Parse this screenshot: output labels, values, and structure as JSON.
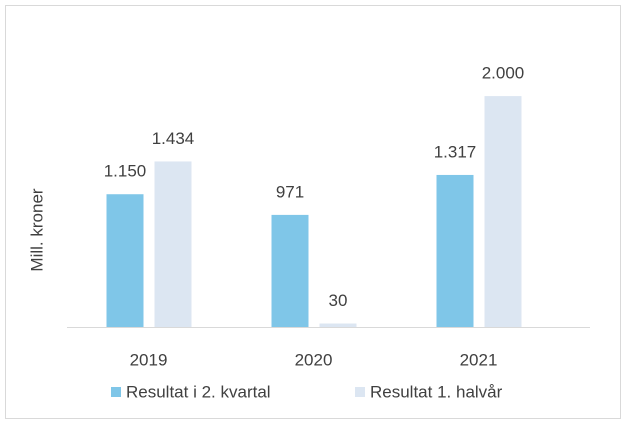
{
  "chart_data": {
    "type": "bar",
    "y_label": "Mill. kroner",
    "categories": [
      "2019",
      "2020",
      "2021"
    ],
    "series": [
      {
        "name": "Resultat i 2. kvartal",
        "color": "#7fc6e8",
        "values": [
          1150,
          971,
          1317
        ],
        "value_labels": [
          "1.150",
          "971",
          "1.317"
        ]
      },
      {
        "name": "Resultat 1. halvår",
        "color": "#dce6f2",
        "values": [
          1434,
          30,
          2000
        ],
        "value_labels": [
          "1.434",
          "30",
          "2.000"
        ]
      }
    ],
    "ylim": [
      0,
      2200
    ],
    "legend": "bottom"
  }
}
